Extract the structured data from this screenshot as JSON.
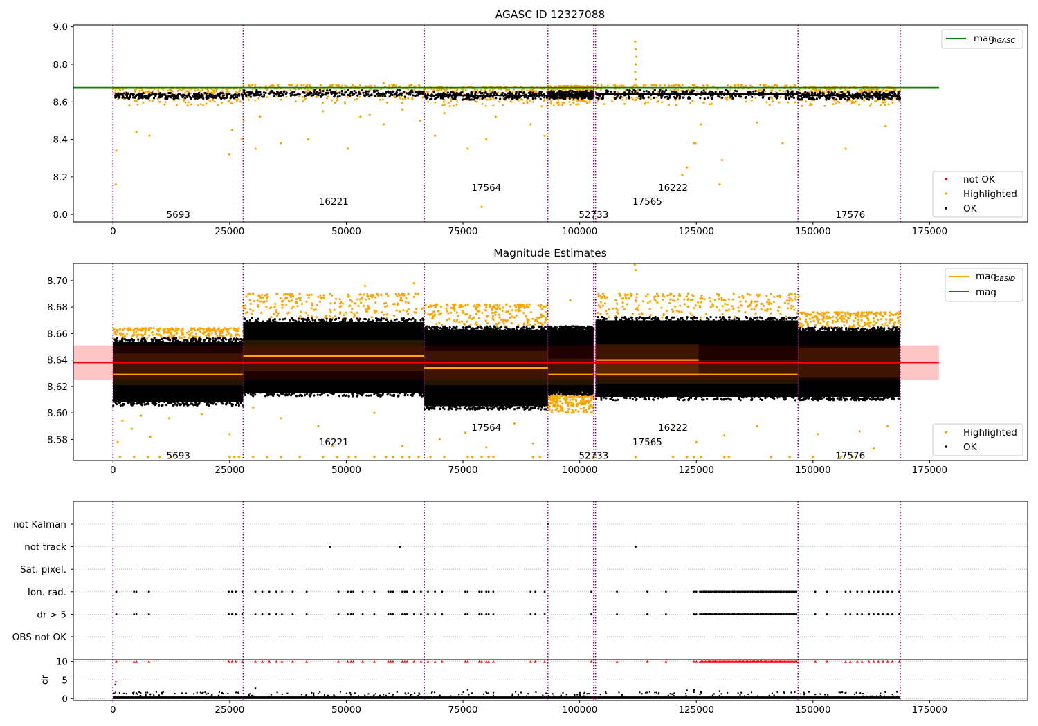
{
  "chart_data": [
    {
      "type": "scatter",
      "title": "AGASC ID 12327088",
      "xlabel": "",
      "ylabel": "",
      "xlim": [
        -8500,
        196000
      ],
      "ylim": [
        7.96,
        9.01
      ],
      "xticks": [
        0,
        25000,
        50000,
        75000,
        100000,
        125000,
        150000,
        175000
      ],
      "yticks": [
        8.0,
        8.2,
        8.4,
        8.6,
        8.8,
        9.0
      ],
      "ytick_labels": [
        "8.0",
        "8.2",
        "8.4",
        "8.6",
        "8.8",
        "9.0"
      ],
      "obsid_boundaries": [
        0,
        27900,
        66700,
        93200,
        103000,
        103400,
        146800,
        168700
      ],
      "obsid_labels": [
        {
          "text": "5693",
          "x": 14000,
          "y": 8.0
        },
        {
          "text": "16221",
          "x": 47300,
          "y": 8.07
        },
        {
          "text": "17564",
          "x": 80000,
          "y": 8.145
        },
        {
          "text": "52733",
          "x": 103000,
          "y": 8.0
        },
        {
          "text": "17565",
          "x": 114500,
          "y": 8.07
        },
        {
          "text": "16222",
          "x": 120000,
          "y": 8.145
        },
        {
          "text": "17576",
          "x": 158000,
          "y": 8.0
        }
      ],
      "ok_band": [
        {
          "x0": 0,
          "x1": 27900,
          "y0": 8.62,
          "y1": 8.645
        },
        {
          "x0": 27900,
          "x1": 66700,
          "y0": 8.63,
          "y1": 8.66
        },
        {
          "x0": 66700,
          "x1": 93200,
          "y0": 8.615,
          "y1": 8.65
        },
        {
          "x0": 93200,
          "x1": 103000,
          "y0": 8.62,
          "y1": 8.655
        },
        {
          "x0": 103400,
          "x1": 146800,
          "y0": 8.62,
          "y1": 8.66
        },
        {
          "x0": 146800,
          "x1": 168700,
          "y0": 8.615,
          "y1": 8.65
        }
      ],
      "highlighted_points": [
        [
          600,
          8.16
        ],
        [
          700,
          8.34
        ],
        [
          3500,
          8.58
        ],
        [
          5000,
          8.44
        ],
        [
          7800,
          8.42
        ],
        [
          10000,
          8.6
        ],
        [
          16000,
          8.58
        ],
        [
          20000,
          8.59
        ],
        [
          24900,
          8.32
        ],
        [
          25500,
          8.45
        ],
        [
          27600,
          8.4
        ],
        [
          28000,
          8.5
        ],
        [
          30500,
          8.35
        ],
        [
          31500,
          8.52
        ],
        [
          36000,
          8.38
        ],
        [
          41800,
          8.4
        ],
        [
          45000,
          8.55
        ],
        [
          50300,
          8.35
        ],
        [
          53000,
          8.52
        ],
        [
          55000,
          8.53
        ],
        [
          58000,
          8.48
        ],
        [
          62000,
          8.56
        ],
        [
          65800,
          8.5
        ],
        [
          69000,
          8.42
        ],
        [
          71000,
          8.54
        ],
        [
          76000,
          8.35
        ],
        [
          79000,
          8.04
        ],
        [
          80000,
          8.4
        ],
        [
          82000,
          8.52
        ],
        [
          89500,
          8.48
        ],
        [
          92500,
          8.42
        ],
        [
          111900,
          8.92
        ],
        [
          112000,
          8.88
        ],
        [
          112100,
          8.84
        ],
        [
          112000,
          8.8
        ],
        [
          111900,
          8.76
        ],
        [
          112000,
          8.72
        ],
        [
          111950,
          8.69
        ],
        [
          122000,
          8.21
        ],
        [
          123000,
          8.25
        ],
        [
          124500,
          8.38
        ],
        [
          124800,
          8.38
        ],
        [
          126000,
          8.48
        ],
        [
          130000,
          8.16
        ],
        [
          130500,
          8.29
        ],
        [
          138000,
          8.49
        ],
        [
          143500,
          8.38
        ],
        [
          157000,
          8.35
        ],
        [
          165500,
          8.47
        ],
        [
          134000,
          8.69
        ],
        [
          58000,
          8.7
        ]
      ],
      "legend": [
        {
          "label": "mag",
          "sub": "AGASC",
          "kind": "line",
          "color": "#008000",
          "loc": "upper-right"
        },
        {
          "label": "not OK",
          "kind": "dot",
          "color": "#ff0000",
          "loc": "lower-right"
        },
        {
          "label": "Highlighted",
          "kind": "dot",
          "color": "#ffa500",
          "loc": "lower-right"
        },
        {
          "label": "OK",
          "kind": "dot",
          "color": "#000000",
          "loc": "lower-right"
        }
      ],
      "reference_line": {
        "y": 8.676,
        "x0": -8500,
        "x1": 177000,
        "color": "#008000"
      }
    },
    {
      "type": "scatter",
      "title": "Magnitude Estimates",
      "xlabel": "",
      "ylabel": "",
      "xlim": [
        -8500,
        196000
      ],
      "ylim": [
        8.564,
        8.713
      ],
      "xticks": [
        0,
        25000,
        50000,
        75000,
        100000,
        125000,
        150000,
        175000
      ],
      "yticks": [
        8.58,
        8.6,
        8.62,
        8.64,
        8.66,
        8.68,
        8.7
      ],
      "ytick_labels": [
        "8.58",
        "8.60",
        "8.62",
        "8.64",
        "8.66",
        "8.68",
        "8.70"
      ],
      "obsid_boundaries": [
        0,
        27900,
        66700,
        93200,
        103000,
        103400,
        146800,
        168700
      ],
      "obsid_labels": [
        {
          "text": "5693",
          "x": 14000,
          "y": 8.568
        },
        {
          "text": "16221",
          "x": 47300,
          "y": 8.578
        },
        {
          "text": "17564",
          "x": 80000,
          "y": 8.589
        },
        {
          "text": "52733",
          "x": 103000,
          "y": 8.568
        },
        {
          "text": "17565",
          "x": 114500,
          "y": 8.578
        },
        {
          "text": "16222",
          "x": 120000,
          "y": 8.589
        },
        {
          "text": "17576",
          "x": 158000,
          "y": 8.568
        }
      ],
      "ok_band": [
        {
          "x0": 0,
          "x1": 27900,
          "y0": 8.606,
          "y1": 8.656
        },
        {
          "x0": 27900,
          "x1": 66700,
          "y0": 8.613,
          "y1": 8.671
        },
        {
          "x0": 66700,
          "x1": 93200,
          "y0": 8.603,
          "y1": 8.665
        },
        {
          "x0": 93200,
          "x1": 103000,
          "y0": 8.614,
          "y1": 8.665
        },
        {
          "x0": 103400,
          "x1": 146800,
          "y0": 8.61,
          "y1": 8.672
        },
        {
          "x0": 146800,
          "x1": 168700,
          "y0": 8.61,
          "y1": 8.664
        }
      ],
      "highlight_band": [
        {
          "x0": 0,
          "x1": 27900,
          "y0": 8.656,
          "y1": 8.664
        },
        {
          "x0": 27900,
          "x1": 66700,
          "y0": 8.671,
          "y1": 8.69
        },
        {
          "x0": 66700,
          "x1": 93200,
          "y0": 8.665,
          "y1": 8.682
        },
        {
          "x0": 93200,
          "x1": 103000,
          "y0": 8.6,
          "y1": 8.615
        },
        {
          "x0": 103400,
          "x1": 146800,
          "y0": 8.672,
          "y1": 8.69
        },
        {
          "x0": 146800,
          "x1": 168700,
          "y0": 8.664,
          "y1": 8.676
        }
      ],
      "mag_obsid": [
        {
          "x0": 0,
          "x1": 27900,
          "y": 8.629,
          "lo": 8.621,
          "hi": 8.645
        },
        {
          "x0": 27900,
          "x1": 66700,
          "y": 8.643,
          "lo": 8.632,
          "hi": 8.655
        },
        {
          "x0": 66700,
          "x1": 93200,
          "y": 8.634,
          "lo": 8.621,
          "hi": 8.647
        },
        {
          "x0": 93200,
          "x1": 103000,
          "y": 8.629,
          "lo": 8.621,
          "hi": 8.641
        },
        {
          "x0": 103400,
          "x1": 125500,
          "y": 8.64,
          "lo": 8.628,
          "hi": 8.652
        },
        {
          "x0": 103400,
          "x1": 146800,
          "y": 8.629,
          "lo": 8.622,
          "hi": 8.64
        },
        {
          "x0": 146800,
          "x1": 168700,
          "y": 8.638,
          "lo": 8.627,
          "hi": 8.649
        }
      ],
      "mag": {
        "y": 8.638,
        "lo": 8.625,
        "hi": 8.651,
        "x0": -8500,
        "x1": 177000
      },
      "highlighted_points": [
        [
          1000,
          8.578
        ],
        [
          2000,
          8.594
        ],
        [
          4000,
          8.588
        ],
        [
          6000,
          8.598
        ],
        [
          8000,
          8.582
        ],
        [
          12000,
          8.596
        ],
        [
          19000,
          8.599
        ],
        [
          25000,
          8.584
        ],
        [
          30000,
          8.604
        ],
        [
          36000,
          8.596
        ],
        [
          44000,
          8.59
        ],
        [
          47000,
          8.575
        ],
        [
          56000,
          8.6
        ],
        [
          62000,
          8.575
        ],
        [
          64500,
          8.698
        ],
        [
          70000,
          8.58
        ],
        [
          75500,
          8.585
        ],
        [
          80000,
          8.574
        ],
        [
          86000,
          8.592
        ],
        [
          90000,
          8.577
        ],
        [
          98000,
          8.685
        ],
        [
          111800,
          8.712
        ],
        [
          112000,
          8.708
        ],
        [
          120000,
          8.591
        ],
        [
          125000,
          8.578
        ],
        [
          131000,
          8.583
        ],
        [
          138000,
          8.59
        ],
        [
          147000,
          8.688
        ],
        [
          151000,
          8.584
        ],
        [
          160000,
          8.586
        ],
        [
          163000,
          8.573
        ],
        [
          166000,
          8.59
        ],
        [
          54000,
          8.696
        ]
      ],
      "legend": [
        {
          "label": "mag",
          "sub": "OBSID",
          "kind": "line",
          "color": "#ffa500",
          "loc": "upper-right"
        },
        {
          "label": "mag",
          "kind": "line",
          "color": "#ff0000",
          "loc": "upper-right"
        },
        {
          "label": "Highlighted",
          "kind": "dot",
          "color": "#ffa500",
          "loc": "lower-right"
        },
        {
          "label": "OK",
          "kind": "dot",
          "color": "#000000",
          "loc": "lower-right"
        }
      ]
    },
    {
      "type": "scatter",
      "title": "",
      "xlabel": "",
      "ylabel": "",
      "xlim": [
        -8500,
        196000
      ],
      "categories": [
        "not Kalman",
        "not track",
        "Sat. pixel.",
        "Ion. rad.",
        "dr > 5",
        "OBS not OK"
      ],
      "flag_points": {
        "not Kalman": [
          93200
        ],
        "not track": [
          46500,
          61500,
          112000
        ],
        "Sat. pixel.": [],
        "Ion. rad.": [
          700,
          4500,
          5000,
          7700,
          24800,
          25500,
          26300,
          27700,
          30500,
          32000,
          33500,
          35000,
          36200,
          38500,
          41500,
          48300,
          50300,
          51000,
          51500,
          53500,
          56000,
          59000,
          59500,
          60000,
          62000,
          62500,
          63000,
          64500,
          66000,
          67500,
          69000,
          70500,
          75500,
          76000,
          78500,
          79000,
          80000,
          80500,
          81500,
          89500,
          90500,
          92500,
          102500,
          108000,
          114500,
          118500,
          124500,
          125000,
          125800,
          127000,
          128000,
          129000,
          130000,
          131000,
          132000,
          133000,
          134000,
          135000,
          136000,
          137000,
          138000,
          139000,
          140000,
          141000,
          142000,
          143000,
          144000,
          145000,
          146000,
          150500,
          153000,
          157000,
          158000,
          159500,
          160500,
          162000,
          163000,
          164000,
          165000,
          166000,
          167000,
          168500
        ],
        "dr > 5": [
          700,
          4500,
          5000,
          7700,
          24800,
          25500,
          26300,
          27700,
          30500,
          32000,
          33500,
          35000,
          36200,
          38500,
          41500,
          48300,
          50300,
          51000,
          51500,
          53500,
          56000,
          59000,
          59500,
          60000,
          62000,
          62500,
          63000,
          64500,
          66000,
          67500,
          69000,
          70500,
          75500,
          76000,
          78500,
          79000,
          80000,
          80500,
          81500,
          89500,
          90500,
          92500,
          102500,
          108000,
          114500,
          118500,
          124500,
          125000,
          125800,
          127000,
          128000,
          129000,
          130000,
          131000,
          132000,
          133000,
          134000,
          135000,
          136000,
          137000,
          138000,
          139000,
          140000,
          141000,
          142000,
          143000,
          144000,
          145000,
          146000,
          150500,
          153000,
          157000,
          158000,
          159500,
          160500,
          162000,
          163000,
          164000,
          165000,
          166000,
          167000,
          168500
        ],
        "OBS not OK": []
      },
      "obsid_boundaries": [
        0,
        27900,
        66700,
        93200,
        103000,
        103400,
        146800,
        168700
      ]
    },
    {
      "type": "scatter",
      "title": "",
      "xlabel": "",
      "ylabel": "dr",
      "xlim": [
        -8500,
        196000
      ],
      "ylim": [
        -0.5,
        10.5
      ],
      "xticks": [
        0,
        25000,
        50000,
        75000,
        100000,
        125000,
        150000,
        175000
      ],
      "yticks": [
        0,
        5,
        10
      ],
      "clipped_at": 10,
      "clipped_x": [
        700,
        4500,
        5000,
        7700,
        24800,
        25500,
        26300,
        27700,
        30500,
        32000,
        33500,
        35000,
        36200,
        38500,
        41500,
        48300,
        50300,
        51000,
        51500,
        53500,
        56000,
        59000,
        59500,
        60000,
        62000,
        62500,
        63000,
        64500,
        66000,
        67500,
        69000,
        70500,
        75500,
        76000,
        78500,
        79000,
        80000,
        80500,
        81500,
        89500,
        90500,
        92500,
        102500,
        108000,
        114500,
        118500,
        124500,
        125000,
        125800,
        127000,
        128000,
        129000,
        130000,
        131000,
        132000,
        133000,
        134000,
        135000,
        136000,
        137000,
        138000,
        139000,
        140000,
        141000,
        142000,
        143000,
        144000,
        145000,
        146000,
        150500,
        153000,
        157000,
        158000,
        159500,
        160500,
        162000,
        163000,
        164000,
        165000,
        166000,
        167000,
        168500
      ],
      "scattered_points": [
        [
          600,
          4.5
        ],
        [
          500,
          3.8
        ],
        [
          5000,
          1.5
        ],
        [
          30500,
          2.8
        ],
        [
          76000,
          2.4
        ],
        [
          123000,
          2.2
        ],
        [
          124500,
          2.3
        ],
        [
          126000,
          1.9
        ],
        [
          130000,
          2.0
        ],
        [
          8000,
          1.2
        ],
        [
          60000,
          1.1
        ]
      ],
      "obsid_boundaries": [
        0,
        27900,
        66700,
        93200,
        103000,
        103400,
        146800,
        168700
      ]
    }
  ]
}
